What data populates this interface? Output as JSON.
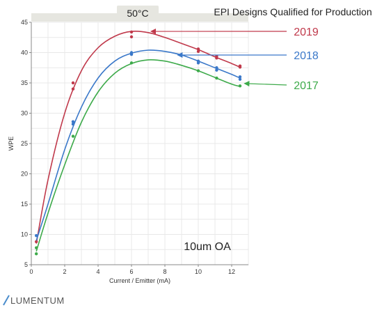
{
  "chart_data": {
    "type": "scatter",
    "title": "EPI Designs Qualified for Production",
    "header_tab": "50°C",
    "xlabel": "Current / Emitter (mA)",
    "ylabel": "WPE",
    "xlim": [
      0,
      13
    ],
    "ylim": [
      5,
      45
    ],
    "x_ticks": [
      "0",
      "2",
      "4",
      "6",
      "8",
      "10",
      "12"
    ],
    "y_ticks": [
      "5",
      "10",
      "15",
      "20",
      "25",
      "30",
      "35",
      "40",
      "45"
    ],
    "grid": true,
    "annotation": "10um OA",
    "series": [
      {
        "name": "2019",
        "color": "#c0394b",
        "points": [
          [
            0.3,
            8.8
          ],
          [
            2.5,
            35.0
          ],
          [
            2.5,
            34.0
          ],
          [
            6.0,
            43.4
          ],
          [
            6.0,
            42.6
          ],
          [
            10.0,
            40.6
          ],
          [
            10.0,
            40.2
          ],
          [
            11.1,
            39.4
          ],
          [
            11.1,
            39.1
          ],
          [
            12.5,
            37.8
          ],
          [
            12.5,
            37.6
          ]
        ],
        "curve": [
          [
            0.3,
            8.5
          ],
          [
            1.0,
            19.0
          ],
          [
            2.0,
            30.0
          ],
          [
            3.0,
            37.0
          ],
          [
            4.0,
            40.8
          ],
          [
            5.0,
            42.7
          ],
          [
            6.0,
            43.5
          ],
          [
            7.0,
            43.3
          ],
          [
            8.0,
            42.5
          ],
          [
            9.0,
            41.5
          ],
          [
            10.0,
            40.5
          ],
          [
            11.0,
            39.3
          ],
          [
            12.0,
            38.2
          ],
          [
            12.5,
            37.6
          ]
        ],
        "arrow_target": [
          7.0,
          43.5
        ]
      },
      {
        "name": "2018",
        "color": "#3a78c9",
        "points": [
          [
            0.3,
            9.8
          ],
          [
            2.5,
            28.6
          ],
          [
            2.5,
            28.2
          ],
          [
            6.0,
            40.0
          ],
          [
            6.0,
            39.7
          ],
          [
            10.0,
            38.6
          ],
          [
            10.0,
            38.3
          ],
          [
            11.1,
            37.5
          ],
          [
            11.1,
            37.1
          ],
          [
            12.5,
            36.0
          ],
          [
            12.5,
            35.6
          ]
        ],
        "curve": [
          [
            0.3,
            9.0
          ],
          [
            1.0,
            15.0
          ],
          [
            2.0,
            24.0
          ],
          [
            3.0,
            31.0
          ],
          [
            4.0,
            35.8
          ],
          [
            5.0,
            38.6
          ],
          [
            6.0,
            39.9
          ],
          [
            7.0,
            40.4
          ],
          [
            8.0,
            40.2
          ],
          [
            9.0,
            39.6
          ],
          [
            10.0,
            38.6
          ],
          [
            11.0,
            37.5
          ],
          [
            12.0,
            36.4
          ],
          [
            12.5,
            35.8
          ]
        ],
        "arrow_target": [
          8.6,
          39.6
        ]
      },
      {
        "name": "2017",
        "color": "#3daa4a",
        "points": [
          [
            0.3,
            7.8
          ],
          [
            0.3,
            6.8
          ],
          [
            2.5,
            26.2
          ],
          [
            6.0,
            38.3
          ],
          [
            10.0,
            37.0
          ],
          [
            11.1,
            35.8
          ],
          [
            12.5,
            34.5
          ]
        ],
        "curve": [
          [
            0.3,
            7.2
          ],
          [
            1.0,
            13.5
          ],
          [
            2.0,
            21.5
          ],
          [
            3.0,
            28.5
          ],
          [
            4.0,
            33.5
          ],
          [
            5.0,
            36.6
          ],
          [
            6.0,
            38.2
          ],
          [
            7.0,
            38.8
          ],
          [
            8.0,
            38.6
          ],
          [
            9.0,
            37.9
          ],
          [
            10.0,
            37.0
          ],
          [
            11.0,
            35.9
          ],
          [
            12.0,
            34.8
          ],
          [
            12.5,
            34.4
          ]
        ],
        "arrow_target": [
          12.6,
          34.9
        ]
      }
    ]
  },
  "footer": {
    "logo_text": "LUMENTUM"
  }
}
